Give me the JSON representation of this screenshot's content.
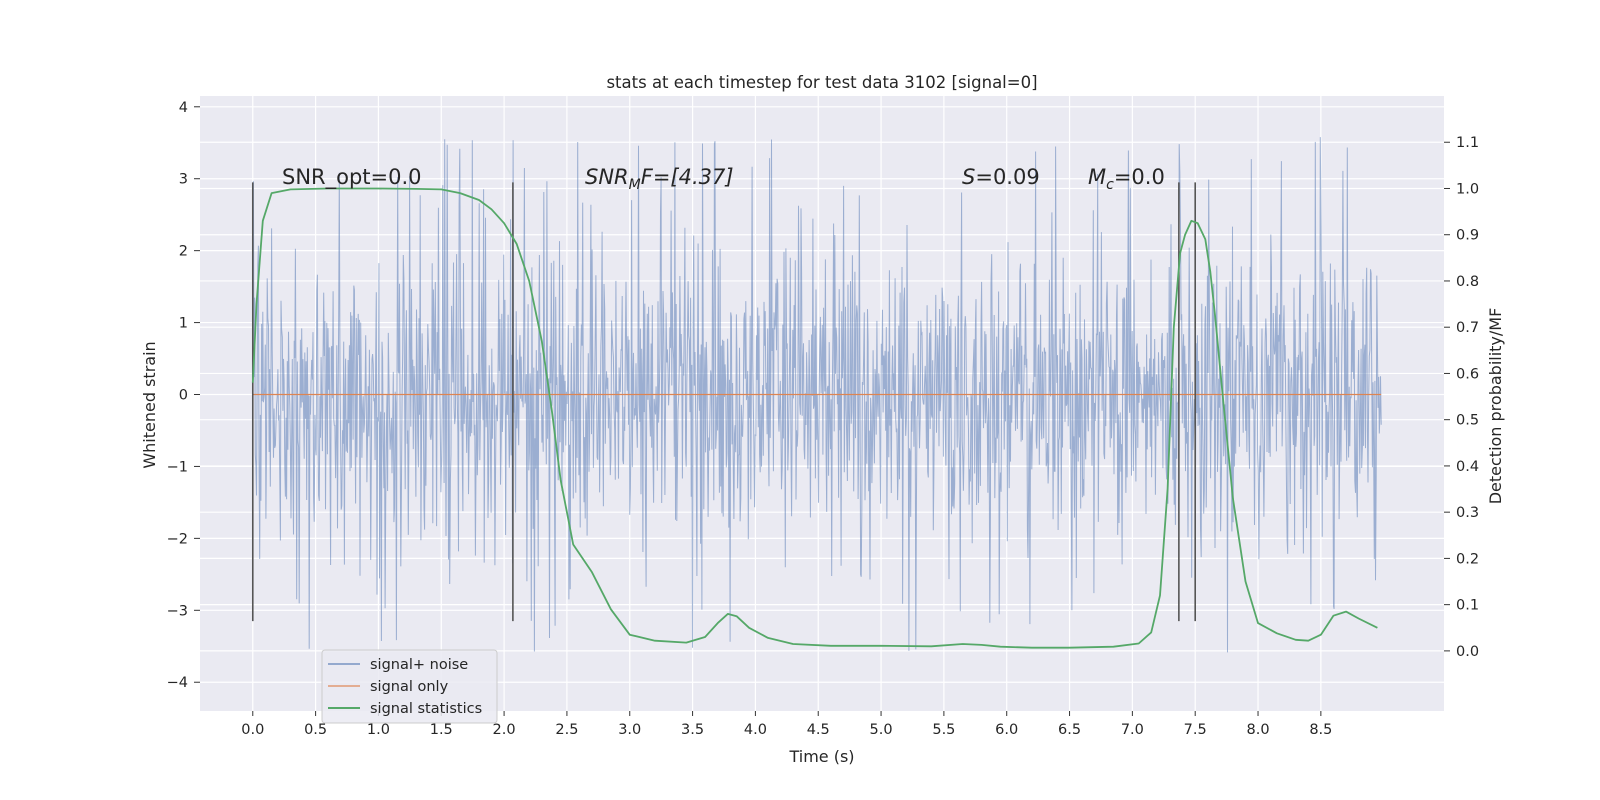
{
  "chart_data": {
    "type": "line",
    "title": "stats at each timestep for test data 3102 [signal=0]",
    "xlabel": "Time (s)",
    "ylabel": "Whitened strain",
    "y2label": "Detection probability/MF",
    "xlim": [
      -0.42,
      9.48
    ],
    "ylim": [
      -4.4,
      4.15
    ],
    "y2lim": [
      -0.13,
      1.2
    ],
    "xticks": [
      "0.0",
      "0.5",
      "1.0",
      "1.5",
      "2.0",
      "2.5",
      "3.0",
      "3.5",
      "4.0",
      "4.5",
      "5.0",
      "5.5",
      "6.0",
      "6.5",
      "7.0",
      "7.5",
      "8.0",
      "8.5"
    ],
    "yticks": [
      "−4",
      "−3",
      "−2",
      "−1",
      "0",
      "1",
      "2",
      "3",
      "4"
    ],
    "y2ticks": [
      "0.0",
      "0.1",
      "0.2",
      "0.3",
      "0.4",
      "0.5",
      "0.6",
      "0.7",
      "0.8",
      "0.9",
      "1.0",
      "1.1"
    ],
    "grid": true,
    "legend": {
      "placement": "lower-left",
      "entries": [
        "signal+ noise",
        "signal only",
        "signal statistics"
      ]
    },
    "colors": {
      "noise": "#4c72b0",
      "signal": "#dd8452",
      "stats": "#55a868",
      "vline": "#555555",
      "background": "#eaeaf2"
    },
    "annotations": {
      "snr_opt": "SNR_opt=0.0",
      "snr_mf_main": "SNR",
      "snr_mf_sub": "M",
      "snr_mf_rest": "F=[4.37]",
      "s_sym": "S",
      "s_val": "=0.09",
      "mc_main": "M",
      "mc_sub": "c",
      "mc_val": "=0.0"
    },
    "vertical_lines_x": [
      0.0,
      2.07,
      7.37,
      7.5
    ],
    "vertical_lines_yrange": [
      -3.15,
      2.95
    ],
    "noise": {
      "x_range": [
        0.0,
        8.98
      ],
      "samples": 1800,
      "core_std": 0.95,
      "spike_top": 3.8,
      "spike_bottom": -4.0
    },
    "signal_only": {
      "x_range": [
        0.0,
        8.98
      ],
      "value": 0.0
    },
    "signal_statistics": {
      "x": [
        0.0,
        0.03,
        0.08,
        0.15,
        0.3,
        0.6,
        1.0,
        1.3,
        1.5,
        1.65,
        1.8,
        1.9,
        2.0,
        2.1,
        2.2,
        2.3,
        2.38,
        2.45,
        2.55,
        2.7,
        2.85,
        3.0,
        3.2,
        3.45,
        3.6,
        3.7,
        3.78,
        3.85,
        3.95,
        4.1,
        4.3,
        4.6,
        5.0,
        5.4,
        5.65,
        5.8,
        5.95,
        6.2,
        6.5,
        6.85,
        7.05,
        7.15,
        7.22,
        7.28,
        7.33,
        7.38,
        7.42,
        7.47,
        7.52,
        7.58,
        7.62,
        7.66,
        7.72,
        7.8,
        7.9,
        8.0,
        8.15,
        8.3,
        8.4,
        8.5,
        8.6,
        8.7,
        8.8,
        8.95
      ],
      "y": [
        0.58,
        0.75,
        0.93,
        0.99,
        0.998,
        1.0,
        1.0,
        0.999,
        0.998,
        0.99,
        0.975,
        0.955,
        0.925,
        0.88,
        0.8,
        0.67,
        0.52,
        0.37,
        0.23,
        0.17,
        0.09,
        0.035,
        0.022,
        0.018,
        0.03,
        0.06,
        0.08,
        0.075,
        0.05,
        0.028,
        0.015,
        0.011,
        0.011,
        0.01,
        0.015,
        0.013,
        0.009,
        0.007,
        0.007,
        0.009,
        0.016,
        0.04,
        0.12,
        0.35,
        0.7,
        0.86,
        0.9,
        0.93,
        0.925,
        0.89,
        0.82,
        0.72,
        0.55,
        0.33,
        0.15,
        0.06,
        0.038,
        0.024,
        0.022,
        0.035,
        0.076,
        0.085,
        0.07,
        0.05
      ]
    }
  }
}
